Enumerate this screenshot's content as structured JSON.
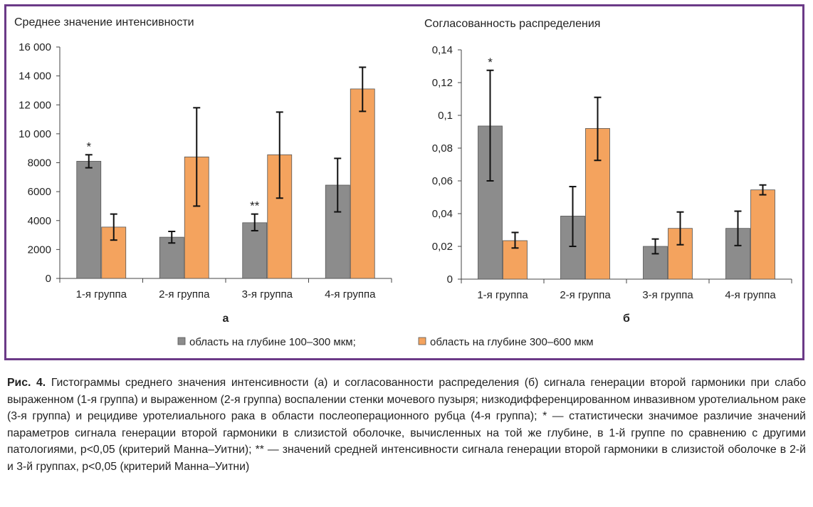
{
  "chart_data": [
    {
      "type": "bar",
      "title": "Среднее значение интенсивности",
      "panel_label": "а",
      "categories": [
        "1-я группа",
        "2-я группа",
        "3-я группа",
        "4-я группа"
      ],
      "ylim": [
        0,
        16000
      ],
      "yticks": [
        "0",
        "2000",
        "4000",
        "6000",
        "8000",
        "10 000",
        "12 000",
        "14 000",
        "16 000"
      ],
      "grid": false,
      "series": [
        {
          "name": "область на глубине 100–300 мкм",
          "color": "#8c8c8c",
          "values": [
            8100,
            2850,
            3850,
            6450
          ],
          "err_low": [
            7650,
            2450,
            3300,
            4600
          ],
          "err_high": [
            8550,
            3250,
            4450,
            8300
          ]
        },
        {
          "name": "область на глубине 300–600 мкм",
          "color": "#f4a35e",
          "values": [
            3550,
            8400,
            8550,
            13100
          ],
          "err_low": [
            2650,
            5000,
            5550,
            11550
          ],
          "err_high": [
            4450,
            11800,
            11500,
            14600
          ]
        }
      ],
      "annotations": [
        {
          "category": 0,
          "series": 0,
          "text": "*"
        },
        {
          "category": 2,
          "series": 0,
          "text": "**"
        }
      ]
    },
    {
      "type": "bar",
      "title": "Согласованность распределения",
      "panel_label": "б",
      "categories": [
        "1-я группа",
        "2-я группа",
        "3-я группа",
        "4-я группа"
      ],
      "ylim": [
        0,
        0.14
      ],
      "yticks": [
        "0",
        "0,02",
        "0,04",
        "0,06",
        "0,08",
        "0,1",
        "0,12",
        "0,14"
      ],
      "grid": false,
      "series": [
        {
          "name": "область на глубине 100–300 мкм",
          "color": "#8c8c8c",
          "values": [
            0.0935,
            0.0385,
            0.02,
            0.031
          ],
          "err_low": [
            0.06,
            0.02,
            0.0155,
            0.0205
          ],
          "err_high": [
            0.1275,
            0.0565,
            0.0245,
            0.0415
          ]
        },
        {
          "name": "область на глубине 300–600 мкм",
          "color": "#f4a35e",
          "values": [
            0.0235,
            0.092,
            0.031,
            0.0545
          ],
          "err_low": [
            0.019,
            0.0725,
            0.021,
            0.0515
          ],
          "err_high": [
            0.0285,
            0.111,
            0.041,
            0.0575
          ]
        }
      ],
      "annotations": [
        {
          "category": 0,
          "series": 0,
          "text": "*"
        }
      ]
    }
  ],
  "legend": {
    "items": [
      "область на глубине 100–300 мкм",
      "область на глубине 300–600 мкм"
    ],
    "separator": ";",
    "colors": [
      "#8c8c8c",
      "#f4a35e"
    ]
  },
  "caption": {
    "lead": "Рис. 4.",
    "text": "Гистограммы среднего значения интенсивности (а) и согласованности распределения (б) сигнала генерации второй гармоники при слабо выраженном (1-я группа) и выраженном (2-я группа) воспалении стенки мочевого пузыря; низкодифференцированном инвазивном уротелиальном раке (3-я группа) и рецидиве уротелиального рака в области послеоперационного рубца (4-я группа); * — статистически значимое различие значений параметров сигнала генерации второй гармоники в слизистой оболочке, вычисленных на той же глубине, в 1-й группе по сравнению с другими патологиями, p<0,05 (критерий Манна–Уитни); ** — значений средней интенсивности сигнала генерации второй гармоники в слизистой оболочке в 2-й и 3-й группах, p<0,05 (критерий Манна–Уитни)"
  }
}
